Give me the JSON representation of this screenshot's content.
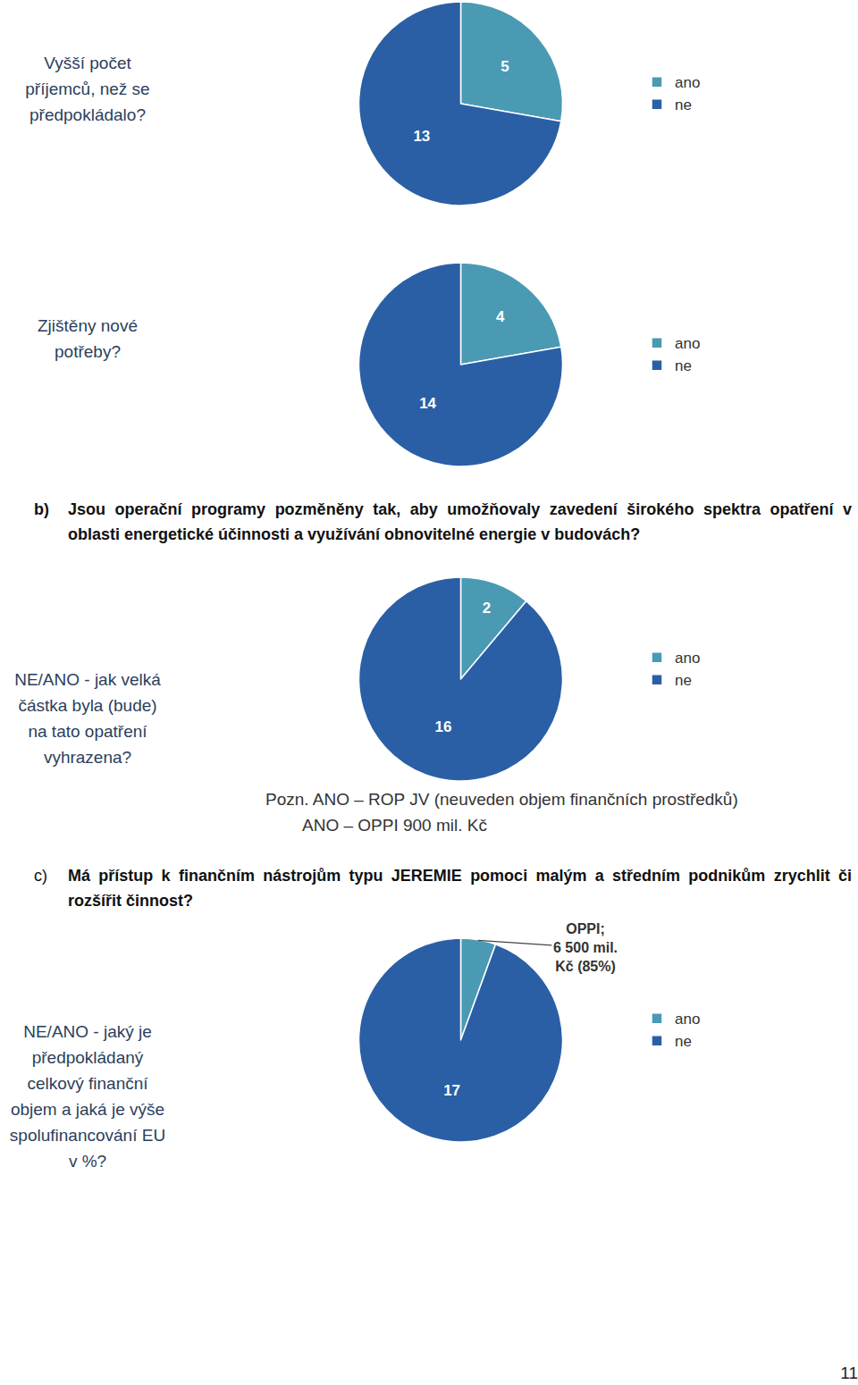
{
  "chart_data": [
    {
      "type": "pie",
      "title": [
        "Vyšší počet",
        "příjemců, než se",
        "předpokládalo?"
      ],
      "categories": [
        "ano",
        "ne"
      ],
      "values": [
        5,
        13
      ],
      "colors": [
        "#4a9ab4",
        "#2a5fa5"
      ],
      "data_labels": true,
      "legend": "right"
    },
    {
      "type": "pie",
      "title": [
        "Zjištěny nové",
        "potřeby?"
      ],
      "categories": [
        "ano",
        "ne"
      ],
      "values": [
        4,
        14
      ],
      "colors": [
        "#4a9ab4",
        "#2a5fa5"
      ],
      "data_labels": true,
      "legend": "right"
    },
    {
      "type": "pie",
      "title": [
        "NE/ANO - jak velká",
        "částka byla (bude)",
        "na tato opatření",
        "vyhrazena?"
      ],
      "categories": [
        "ano",
        "ne"
      ],
      "values": [
        2,
        16
      ],
      "colors": [
        "#4a9ab4",
        "#2a5fa5"
      ],
      "data_labels": true,
      "legend": "right"
    },
    {
      "type": "pie",
      "title": [
        "NE/ANO - jaký je",
        "předpokládaný",
        "celkový finanční",
        "objem a jaká je výše",
        "spolufinancování EU",
        "v %?"
      ],
      "categories": [
        "ano",
        "ne"
      ],
      "values": [
        1,
        17
      ],
      "value_labels": [
        null,
        "17"
      ],
      "colors": [
        "#4a9ab4",
        "#2a5fa5"
      ],
      "data_labels": true,
      "legend": "right",
      "annotation": [
        "OPPI;",
        "6 500 mil.",
        "Kč (85%)"
      ]
    }
  ],
  "page": {
    "headings": [
      {
        "label": "b)",
        "text": "Jsou operační programy pozměněny tak, aby umožňovaly zavedení širokého spektra opatření v oblasti energetické účinnosti a využívání obnovitelné energie v budovách?"
      },
      {
        "label": "c)",
        "text": "Má přístup k finančním nástrojům typu JEREMIE pomoci malým a středním podnikům zrychlit či rozšířit činnost?"
      }
    ],
    "note": [
      "Pozn. ANO – ROP JV (neuveden objem finančních prostředků)",
      "ANO – OPPI 900 mil. Kč"
    ],
    "page_number": "11"
  }
}
